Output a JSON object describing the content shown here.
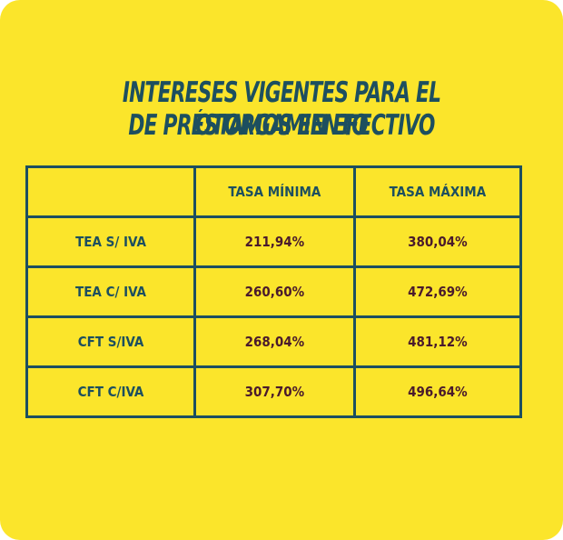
{
  "header": {
    "title_line1": "INTERESES VIGENTES PARA EL OTORGAMIENTO",
    "title_line2": "DE PRÉSTAMOS EN EFECTIVO"
  },
  "table": {
    "columns": [
      "",
      "TASA MÍNIMA",
      "TASA MÁXIMA"
    ],
    "rows": [
      [
        "TEA S/ IVA",
        "211,94%",
        "380,04%"
      ],
      [
        "TEA C/ IVA",
        "260,60%",
        "472,69%"
      ],
      [
        "CFT S/IVA",
        "268,04%",
        "481,12%"
      ],
      [
        "CFT C/IVA",
        "307,70%",
        "496,64%"
      ]
    ]
  }
}
